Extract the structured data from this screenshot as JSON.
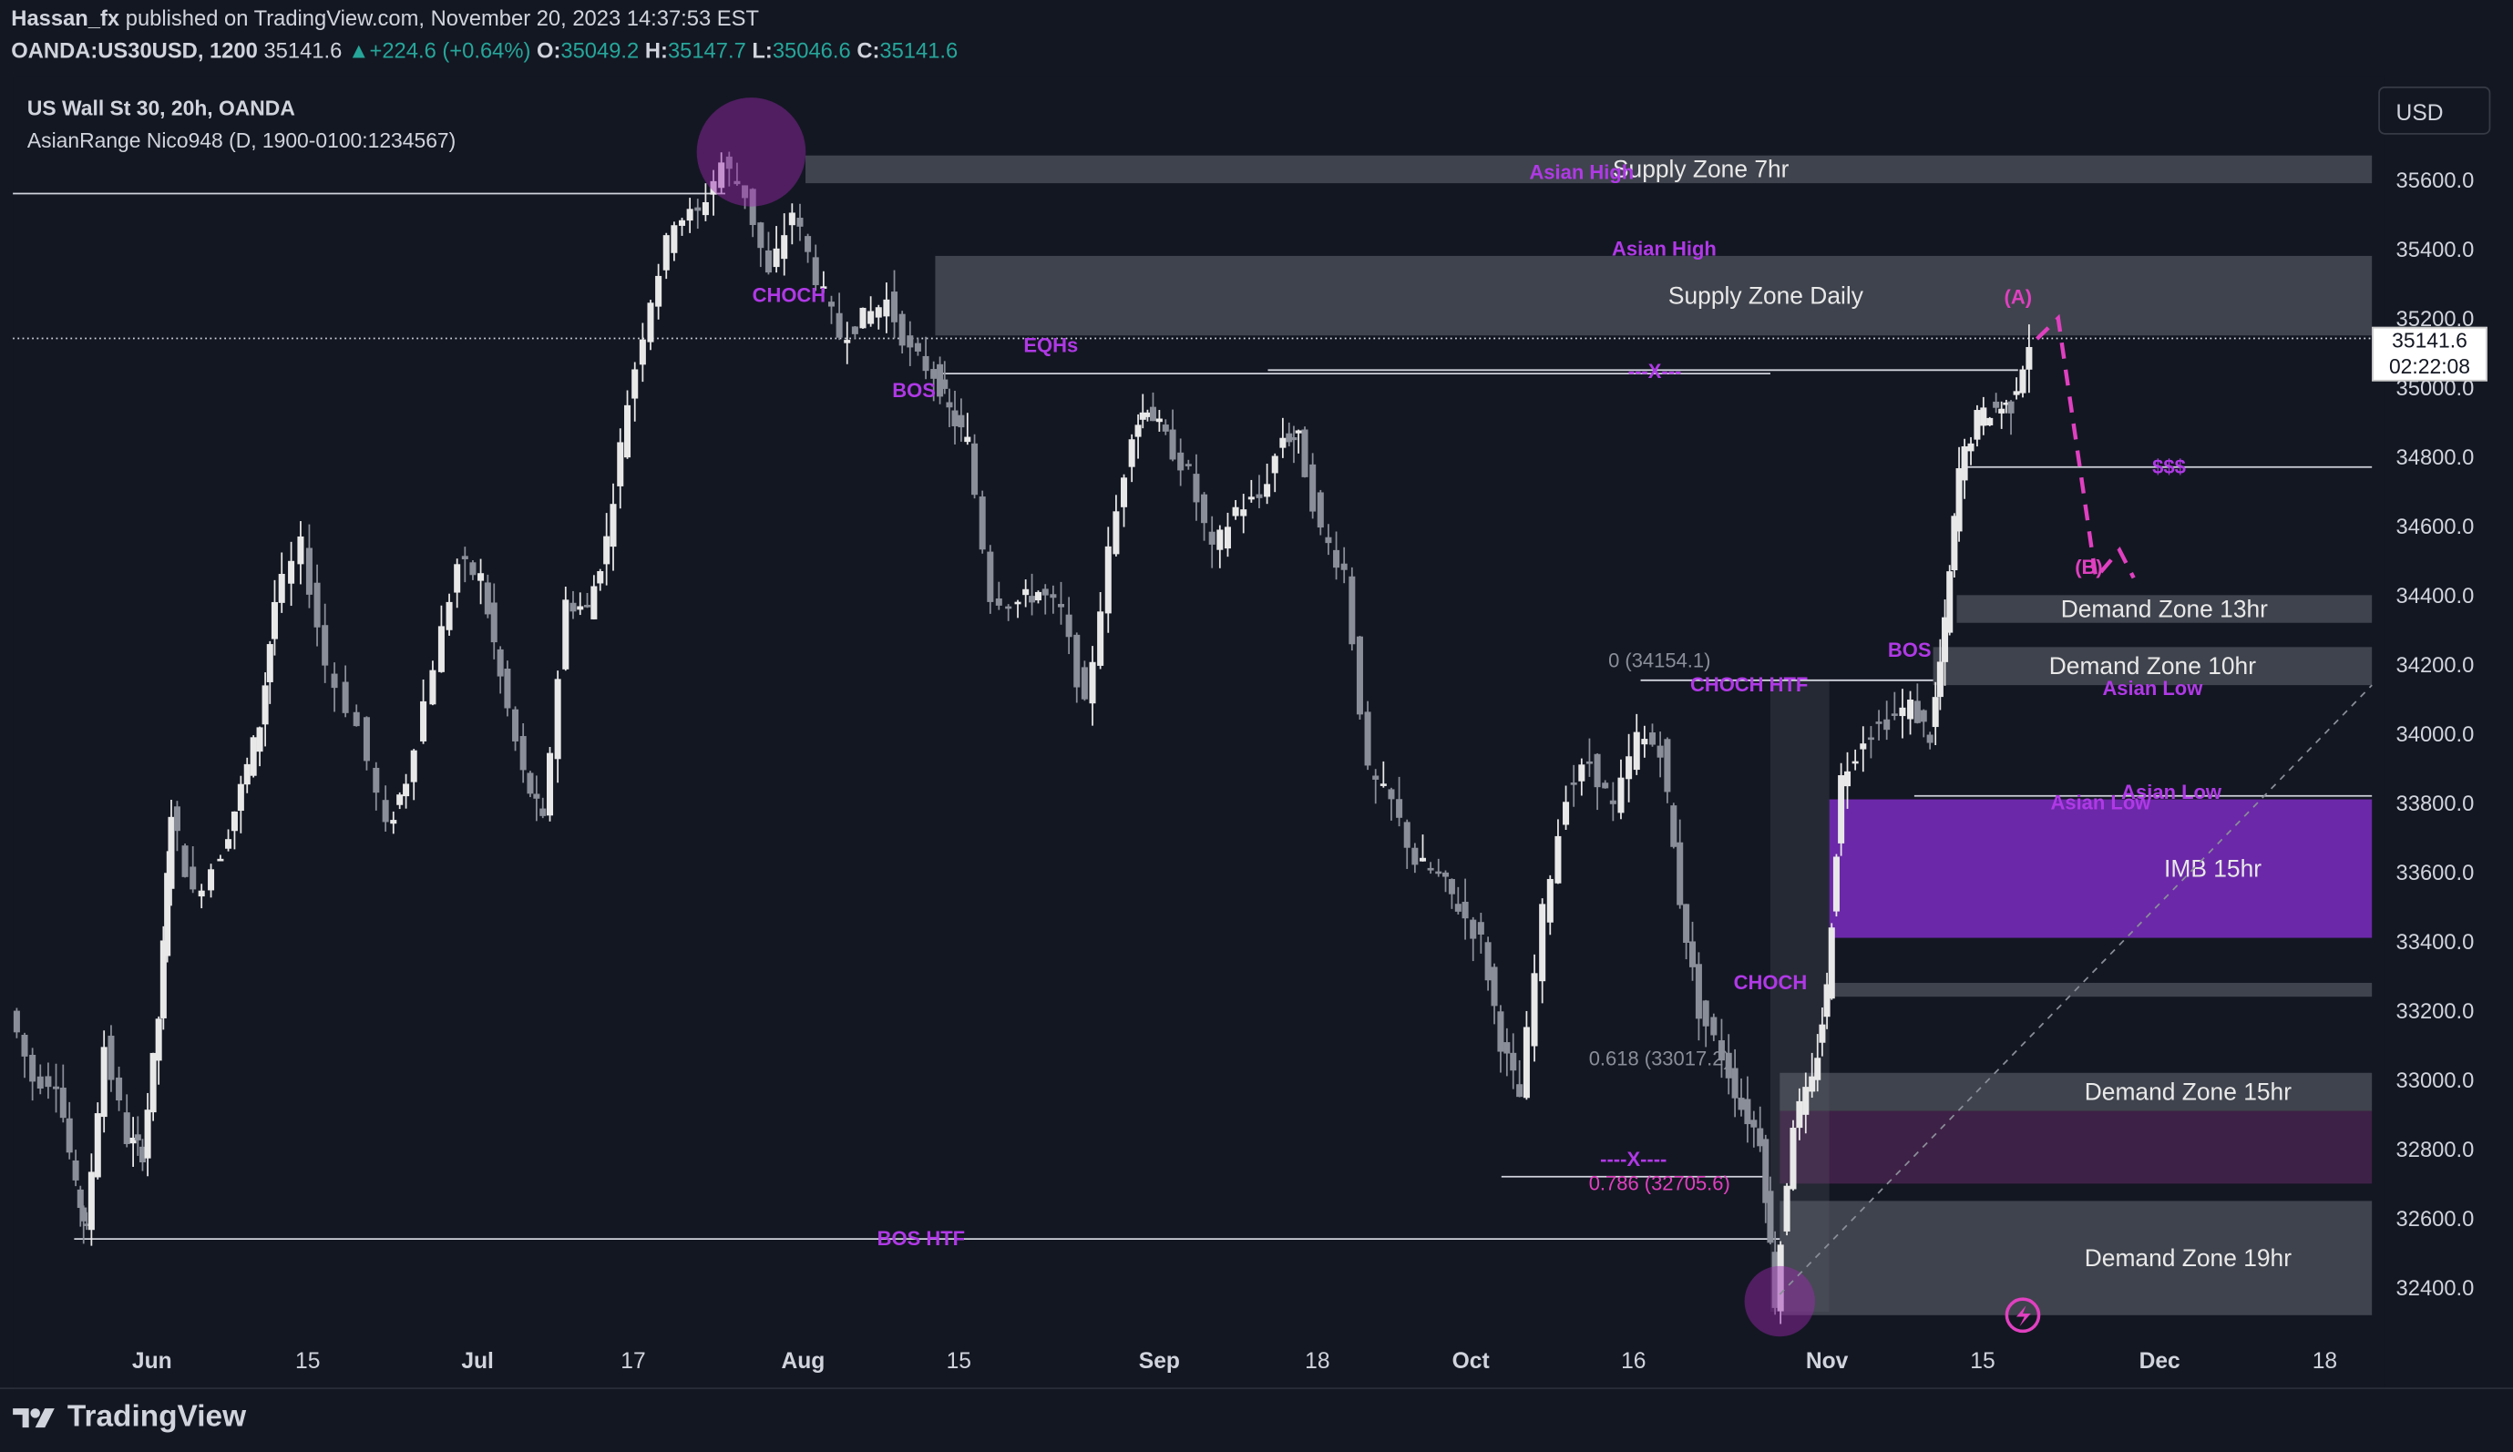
{
  "header": {
    "author": "Hassan_fx",
    "published": "published on TradingView.com, November 20, 2023 14:37:53 EST",
    "symbol": "OANDA:US30USD, 1200",
    "last": "35141.6",
    "change": "+224.6 (+0.64%)",
    "o_label": "O:",
    "o": "35049.2",
    "h_label": "H:",
    "h": "35147.7",
    "l_label": "L:",
    "l": "35046.6",
    "c_label": "C:",
    "c": "35141.6"
  },
  "legend": {
    "title": "US Wall St 30, 20h, OANDA",
    "indicator": "AsianRange Nico948 (D, 1900-0100:1234567)"
  },
  "currency": "USD",
  "price_tag": {
    "price": "35141.6",
    "countdown": "02:22:08"
  },
  "footer": {
    "brand": "TradingView"
  },
  "colors": {
    "background": "#131722",
    "candle": "#e8e8e8",
    "zone_gray": "#5d606b",
    "purple": "#9c27b0",
    "label_purple": "#b039e6",
    "magenta": "#e040c0"
  },
  "chart_data": {
    "type": "candlestick",
    "ylim": [
      32310,
      35860
    ],
    "x_labels": [
      {
        "text": "Jun",
        "t": 0.059
      },
      {
        "text": "15",
        "t": 0.125
      },
      {
        "text": "Jul",
        "t": 0.197
      },
      {
        "text": "17",
        "t": 0.263
      },
      {
        "text": "Aug",
        "t": 0.335
      },
      {
        "text": "15",
        "t": 0.401
      },
      {
        "text": "Sep",
        "t": 0.486
      },
      {
        "text": "18",
        "t": 0.553
      },
      {
        "text": "Oct",
        "t": 0.618
      },
      {
        "text": "16",
        "t": 0.687
      },
      {
        "text": "Nov",
        "t": 0.769
      },
      {
        "text": "15",
        "t": 0.835
      },
      {
        "text": "Dec",
        "t": 0.91
      },
      {
        "text": "18",
        "t": 0.98
      }
    ],
    "y_ticks": [
      35600,
      35400,
      35200,
      35000,
      34800,
      34600,
      34400,
      34200,
      34000,
      33800,
      33600,
      33400,
      33200,
      33000,
      32800,
      32600,
      32400
    ],
    "price_path": [
      [
        0.0,
        33200
      ],
      [
        0.01,
        33000
      ],
      [
        0.02,
        33000
      ],
      [
        0.028,
        32680
      ],
      [
        0.032,
        32560
      ],
      [
        0.04,
        33100
      ],
      [
        0.05,
        32830
      ],
      [
        0.056,
        32790
      ],
      [
        0.063,
        33180
      ],
      [
        0.068,
        33780
      ],
      [
        0.078,
        33530
      ],
      [
        0.09,
        33660
      ],
      [
        0.098,
        33840
      ],
      [
        0.106,
        34030
      ],
      [
        0.112,
        34380
      ],
      [
        0.124,
        34540
      ],
      [
        0.134,
        34200
      ],
      [
        0.148,
        34020
      ],
      [
        0.16,
        33720
      ],
      [
        0.168,
        33870
      ],
      [
        0.18,
        34200
      ],
      [
        0.19,
        34490
      ],
      [
        0.2,
        34450
      ],
      [
        0.208,
        34160
      ],
      [
        0.218,
        33880
      ],
      [
        0.226,
        33740
      ],
      [
        0.236,
        34380
      ],
      [
        0.245,
        34360
      ],
      [
        0.253,
        34560
      ],
      [
        0.262,
        34960
      ],
      [
        0.272,
        35260
      ],
      [
        0.282,
        35490
      ],
      [
        0.292,
        35500
      ],
      [
        0.302,
        35650
      ],
      [
        0.312,
        35560
      ],
      [
        0.322,
        35320
      ],
      [
        0.332,
        35510
      ],
      [
        0.342,
        35320
      ],
      [
        0.352,
        35150
      ],
      [
        0.362,
        35200
      ],
      [
        0.372,
        35250
      ],
      [
        0.382,
        35100
      ],
      [
        0.392,
        35040
      ],
      [
        0.398,
        34930
      ],
      [
        0.406,
        34840
      ],
      [
        0.416,
        34400
      ],
      [
        0.428,
        34380
      ],
      [
        0.436,
        34410
      ],
      [
        0.446,
        34350
      ],
      [
        0.456,
        34070
      ],
      [
        0.466,
        34520
      ],
      [
        0.476,
        34880
      ],
      [
        0.482,
        34950
      ],
      [
        0.49,
        34850
      ],
      [
        0.5,
        34750
      ],
      [
        0.51,
        34520
      ],
      [
        0.52,
        34650
      ],
      [
        0.53,
        34680
      ],
      [
        0.54,
        34860
      ],
      [
        0.546,
        34850
      ],
      [
        0.556,
        34580
      ],
      [
        0.566,
        34470
      ],
      [
        0.576,
        33880
      ],
      [
        0.586,
        33800
      ],
      [
        0.596,
        33630
      ],
      [
        0.606,
        33590
      ],
      [
        0.614,
        33500
      ],
      [
        0.624,
        33400
      ],
      [
        0.632,
        33110
      ],
      [
        0.64,
        32950
      ],
      [
        0.65,
        33480
      ],
      [
        0.66,
        33830
      ],
      [
        0.67,
        33920
      ],
      [
        0.68,
        33780
      ],
      [
        0.69,
        33990
      ],
      [
        0.7,
        33960
      ],
      [
        0.708,
        33520
      ],
      [
        0.716,
        33200
      ],
      [
        0.726,
        33070
      ],
      [
        0.734,
        32920
      ],
      [
        0.742,
        32830
      ],
      [
        0.748,
        32360
      ],
      [
        0.756,
        32880
      ],
      [
        0.764,
        32990
      ],
      [
        0.77,
        33260
      ],
      [
        0.776,
        33870
      ],
      [
        0.786,
        33990
      ],
      [
        0.796,
        34040
      ],
      [
        0.806,
        34080
      ],
      [
        0.814,
        33990
      ],
      [
        0.82,
        34310
      ],
      [
        0.826,
        34760
      ],
      [
        0.834,
        34910
      ],
      [
        0.842,
        34940
      ],
      [
        0.848,
        34950
      ],
      [
        0.856,
        35130
      ]
    ],
    "zones": [
      {
        "label": "Supply Zone 7hr",
        "y1": 35590,
        "y2": 35670,
        "t1": 0.336,
        "t2": 1.0,
        "style": "gray"
      },
      {
        "label": "Supply Zone Daily",
        "y1": 35150,
        "y2": 35380,
        "t1": 0.391,
        "t2": 1.0,
        "style": "gray"
      },
      {
        "label": "Demand Zone 13hr",
        "y1": 34320,
        "y2": 34400,
        "t1": 0.824,
        "t2": 1.0,
        "style": "gray"
      },
      {
        "label": "Demand Zone 10hr",
        "y1": 34140,
        "y2": 34250,
        "t1": 0.814,
        "t2": 1.0,
        "style": "gray"
      },
      {
        "label": "IMB 15hr",
        "y1": 33410,
        "y2": 33810,
        "t1": 0.77,
        "t2": 1.0,
        "style": "purple"
      },
      {
        "label": "",
        "y1": 33240,
        "y2": 33280,
        "t1": 0.77,
        "t2": 1.0,
        "style": "gray"
      },
      {
        "label": "Demand Zone 15hr",
        "y1": 32910,
        "y2": 33020,
        "t1": 0.749,
        "t2": 1.0,
        "style": "gray"
      },
      {
        "label": "",
        "y1": 32700,
        "y2": 32910,
        "t1": 0.749,
        "t2": 1.0,
        "style": "darkpurple"
      },
      {
        "label": "Demand Zone 19hr",
        "y1": 32320,
        "y2": 32650,
        "t1": 0.749,
        "t2": 1.0,
        "style": "gray"
      }
    ],
    "annotations": [
      {
        "text": "Asian High",
        "t": 0.7,
        "y": 35400,
        "color": "purple"
      },
      {
        "text": "Asian High",
        "t": 0.665,
        "y": 35620,
        "color": "purple"
      },
      {
        "text": "CHOCH",
        "t": 0.329,
        "y": 35265,
        "color": "purple"
      },
      {
        "text": "BOS",
        "t": 0.382,
        "y": 34990,
        "color": "purple"
      },
      {
        "text": "EQHs",
        "t": 0.44,
        "y": 35120,
        "color": "purple"
      },
      {
        "text": "---X---",
        "t": 0.696,
        "y": 35045,
        "color": "purple"
      },
      {
        "text": "$$$",
        "t": 0.914,
        "y": 34770,
        "color": "purple"
      },
      {
        "text": "(A)",
        "t": 0.85,
        "y": 35260,
        "color": "magenta"
      },
      {
        "text": "(B)",
        "t": 0.88,
        "y": 34480,
        "color": "magenta"
      },
      {
        "text": "BOS",
        "t": 0.804,
        "y": 34240,
        "color": "purple"
      },
      {
        "text": "CHOCH HTF",
        "t": 0.736,
        "y": 34140,
        "color": "purple"
      },
      {
        "text": "0 (34154.1)",
        "t": 0.698,
        "y": 34210,
        "color": "gray"
      },
      {
        "text": "Asian Low",
        "t": 0.907,
        "y": 34130,
        "color": "purple"
      },
      {
        "text": "Asian Low",
        "t": 0.915,
        "y": 33830,
        "color": "purple"
      },
      {
        "text": "Asian Low",
        "t": 0.885,
        "y": 33800,
        "color": "purple"
      },
      {
        "text": "CHOCH",
        "t": 0.745,
        "y": 33280,
        "color": "purple"
      },
      {
        "text": "0.618 (33017.2)",
        "t": 0.698,
        "y": 33060,
        "color": "gray"
      },
      {
        "text": "----X----",
        "t": 0.687,
        "y": 32770,
        "color": "purple"
      },
      {
        "text": "0.786 (32705.6)",
        "t": 0.698,
        "y": 32700,
        "color": "magenta"
      },
      {
        "text": "BOS HTF",
        "t": 0.385,
        "y": 32540,
        "color": "purple"
      }
    ],
    "last_price": 35141.6
  }
}
